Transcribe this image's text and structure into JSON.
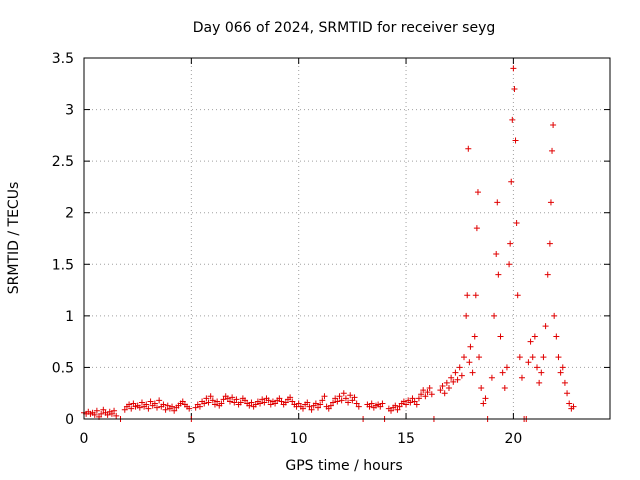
{
  "chart_data": {
    "type": "scatter",
    "title": "Day 066 of 2024, SRMTID for receiver seyg",
    "xlabel": "GPS time / hours",
    "ylabel": "SRMTID / TECUs",
    "xlim": [
      0,
      24.5
    ],
    "ylim": [
      0,
      3.5
    ],
    "x_ticks": [
      0,
      5,
      10,
      15,
      20
    ],
    "x_tick_labels": [
      "0",
      "5",
      "10",
      "15",
      "20"
    ],
    "y_ticks": [
      0,
      0.5,
      1,
      1.5,
      2,
      2.5,
      3,
      3.5
    ],
    "y_tick_labels": [
      "0",
      "0.5",
      "1",
      "1.5",
      "2",
      "2.5",
      "3",
      "3.5"
    ],
    "grid": true,
    "marker": "plus",
    "marker_color": "#e00000",
    "series": [
      {
        "name": "SRMTID",
        "description_points": "x in hours, y in TECU",
        "points": [
          [
            0.0,
            0.06
          ],
          [
            0.1,
            0.05
          ],
          [
            0.2,
            0.07
          ],
          [
            0.3,
            0.05
          ],
          [
            0.4,
            0.06
          ],
          [
            0.5,
            0.04
          ],
          [
            0.6,
            0.08
          ],
          [
            0.7,
            0.02
          ],
          [
            0.8,
            0.05
          ],
          [
            0.9,
            0.09
          ],
          [
            1.0,
            0.06
          ],
          [
            1.1,
            0.04
          ],
          [
            1.2,
            0.07
          ],
          [
            1.3,
            0.05
          ],
          [
            1.4,
            0.08
          ],
          [
            1.5,
            0.03
          ],
          [
            1.7,
            0.0
          ],
          [
            1.9,
            0.09
          ],
          [
            2.0,
            0.12
          ],
          [
            2.1,
            0.14
          ],
          [
            2.2,
            0.1
          ],
          [
            2.3,
            0.15
          ],
          [
            2.4,
            0.12
          ],
          [
            2.5,
            0.13
          ],
          [
            2.6,
            0.11
          ],
          [
            2.7,
            0.16
          ],
          [
            2.8,
            0.12
          ],
          [
            2.9,
            0.14
          ],
          [
            3.0,
            0.1
          ],
          [
            3.1,
            0.17
          ],
          [
            3.2,
            0.13
          ],
          [
            3.3,
            0.15
          ],
          [
            3.4,
            0.11
          ],
          [
            3.5,
            0.18
          ],
          [
            3.6,
            0.12
          ],
          [
            3.7,
            0.14
          ],
          [
            3.8,
            0.09
          ],
          [
            3.9,
            0.13
          ],
          [
            4.0,
            0.1
          ],
          [
            4.1,
            0.12
          ],
          [
            4.2,
            0.08
          ],
          [
            4.3,
            0.11
          ],
          [
            4.4,
            0.13
          ],
          [
            4.5,
            0.15
          ],
          [
            4.6,
            0.17
          ],
          [
            4.7,
            0.14
          ],
          [
            4.8,
            0.12
          ],
          [
            4.9,
            0.1
          ],
          [
            5.0,
            0.0
          ],
          [
            5.2,
            0.11
          ],
          [
            5.3,
            0.14
          ],
          [
            5.4,
            0.12
          ],
          [
            5.5,
            0.17
          ],
          [
            5.6,
            0.15
          ],
          [
            5.7,
            0.2
          ],
          [
            5.8,
            0.16
          ],
          [
            5.9,
            0.22
          ],
          [
            6.0,
            0.18
          ],
          [
            6.1,
            0.14
          ],
          [
            6.2,
            0.17
          ],
          [
            6.3,
            0.13
          ],
          [
            6.4,
            0.15
          ],
          [
            6.5,
            0.19
          ],
          [
            6.6,
            0.22
          ],
          [
            6.7,
            0.2
          ],
          [
            6.8,
            0.17
          ],
          [
            6.9,
            0.21
          ],
          [
            7.0,
            0.16
          ],
          [
            7.1,
            0.19
          ],
          [
            7.2,
            0.14
          ],
          [
            7.3,
            0.16
          ],
          [
            7.4,
            0.2
          ],
          [
            7.5,
            0.18
          ],
          [
            7.6,
            0.15
          ],
          [
            7.7,
            0.13
          ],
          [
            7.8,
            0.16
          ],
          [
            7.9,
            0.12
          ],
          [
            8.0,
            0.14
          ],
          [
            8.1,
            0.17
          ],
          [
            8.2,
            0.15
          ],
          [
            8.3,
            0.19
          ],
          [
            8.4,
            0.16
          ],
          [
            8.5,
            0.2
          ],
          [
            8.6,
            0.18
          ],
          [
            8.7,
            0.14
          ],
          [
            8.8,
            0.17
          ],
          [
            8.9,
            0.15
          ],
          [
            9.0,
            0.18
          ],
          [
            9.1,
            0.2
          ],
          [
            9.2,
            0.17
          ],
          [
            9.3,
            0.14
          ],
          [
            9.4,
            0.16
          ],
          [
            9.5,
            0.19
          ],
          [
            9.6,
            0.21
          ],
          [
            9.7,
            0.17
          ],
          [
            9.8,
            0.14
          ],
          [
            9.9,
            0.12
          ],
          [
            10.0,
            0.15
          ],
          [
            10.1,
            0.12
          ],
          [
            10.2,
            0.1
          ],
          [
            10.3,
            0.14
          ],
          [
            10.4,
            0.16
          ],
          [
            10.5,
            0.12
          ],
          [
            10.6,
            0.09
          ],
          [
            10.7,
            0.13
          ],
          [
            10.8,
            0.15
          ],
          [
            10.9,
            0.11
          ],
          [
            11.0,
            0.14
          ],
          [
            11.1,
            0.18
          ],
          [
            11.2,
            0.22
          ],
          [
            11.3,
            0.12
          ],
          [
            11.4,
            0.1
          ],
          [
            11.5,
            0.13
          ],
          [
            11.6,
            0.16
          ],
          [
            11.7,
            0.2
          ],
          [
            11.8,
            0.17
          ],
          [
            11.9,
            0.22
          ],
          [
            12.0,
            0.18
          ],
          [
            12.1,
            0.25
          ],
          [
            12.2,
            0.2
          ],
          [
            12.3,
            0.16
          ],
          [
            12.4,
            0.23
          ],
          [
            12.5,
            0.18
          ],
          [
            12.6,
            0.21
          ],
          [
            12.7,
            0.15
          ],
          [
            12.8,
            0.12
          ],
          [
            13.0,
            0.0
          ],
          [
            13.2,
            0.14
          ],
          [
            13.3,
            0.12
          ],
          [
            13.4,
            0.15
          ],
          [
            13.5,
            0.11
          ],
          [
            13.6,
            0.13
          ],
          [
            13.7,
            0.14
          ],
          [
            13.8,
            0.12
          ],
          [
            13.9,
            0.15
          ],
          [
            14.0,
            0.0
          ],
          [
            14.2,
            0.1
          ],
          [
            14.3,
            0.08
          ],
          [
            14.4,
            0.11
          ],
          [
            14.5,
            0.13
          ],
          [
            14.6,
            0.09
          ],
          [
            14.7,
            0.12
          ],
          [
            14.8,
            0.15
          ],
          [
            14.9,
            0.17
          ],
          [
            15.0,
            0.14
          ],
          [
            15.1,
            0.18
          ],
          [
            15.2,
            0.16
          ],
          [
            15.3,
            0.2
          ],
          [
            15.4,
            0.17
          ],
          [
            15.5,
            0.14
          ],
          [
            15.6,
            0.2
          ],
          [
            15.7,
            0.24
          ],
          [
            15.8,
            0.28
          ],
          [
            15.9,
            0.22
          ],
          [
            16.0,
            0.26
          ],
          [
            16.1,
            0.3
          ],
          [
            16.2,
            0.24
          ],
          [
            16.3,
            0.0
          ],
          [
            16.6,
            0.28
          ],
          [
            16.7,
            0.32
          ],
          [
            16.8,
            0.25
          ],
          [
            16.9,
            0.35
          ],
          [
            17.0,
            0.3
          ],
          [
            17.1,
            0.4
          ],
          [
            17.2,
            0.36
          ],
          [
            17.3,
            0.45
          ],
          [
            17.4,
            0.38
          ],
          [
            17.5,
            0.5
          ],
          [
            17.6,
            0.42
          ],
          [
            17.7,
            0.6
          ],
          [
            17.8,
            1.0
          ],
          [
            17.85,
            1.2
          ],
          [
            17.9,
            2.62
          ],
          [
            17.95,
            0.55
          ],
          [
            18.0,
            0.7
          ],
          [
            18.1,
            0.45
          ],
          [
            18.2,
            0.8
          ],
          [
            18.25,
            1.2
          ],
          [
            18.3,
            1.85
          ],
          [
            18.35,
            2.2
          ],
          [
            18.4,
            0.6
          ],
          [
            18.5,
            0.3
          ],
          [
            18.6,
            0.15
          ],
          [
            18.7,
            0.2
          ],
          [
            18.8,
            0.0
          ],
          [
            19.0,
            0.4
          ],
          [
            19.1,
            1.0
          ],
          [
            19.2,
            1.6
          ],
          [
            19.25,
            2.1
          ],
          [
            19.3,
            1.4
          ],
          [
            19.4,
            0.8
          ],
          [
            19.5,
            0.45
          ],
          [
            19.6,
            0.3
          ],
          [
            19.7,
            0.5
          ],
          [
            19.8,
            1.5
          ],
          [
            19.85,
            1.7
          ],
          [
            19.9,
            2.3
          ],
          [
            19.95,
            2.9
          ],
          [
            20.0,
            3.4
          ],
          [
            20.05,
            3.2
          ],
          [
            20.1,
            2.7
          ],
          [
            20.15,
            1.9
          ],
          [
            20.2,
            1.2
          ],
          [
            20.3,
            0.6
          ],
          [
            20.4,
            0.4
          ],
          [
            20.5,
            0.0
          ],
          [
            20.6,
            0.0
          ],
          [
            20.7,
            0.55
          ],
          [
            20.8,
            0.75
          ],
          [
            20.9,
            0.6
          ],
          [
            21.0,
            0.8
          ],
          [
            21.1,
            0.5
          ],
          [
            21.2,
            0.35
          ],
          [
            21.3,
            0.45
          ],
          [
            21.4,
            0.6
          ],
          [
            21.5,
            0.9
          ],
          [
            21.6,
            1.4
          ],
          [
            21.7,
            1.7
          ],
          [
            21.75,
            2.1
          ],
          [
            21.8,
            2.6
          ],
          [
            21.85,
            2.85
          ],
          [
            21.9,
            1.0
          ],
          [
            22.0,
            0.8
          ],
          [
            22.1,
            0.6
          ],
          [
            22.2,
            0.45
          ],
          [
            22.3,
            0.5
          ],
          [
            22.4,
            0.35
          ],
          [
            22.5,
            0.25
          ],
          [
            22.6,
            0.15
          ],
          [
            22.7,
            0.1
          ],
          [
            22.8,
            0.12
          ]
        ]
      }
    ]
  }
}
